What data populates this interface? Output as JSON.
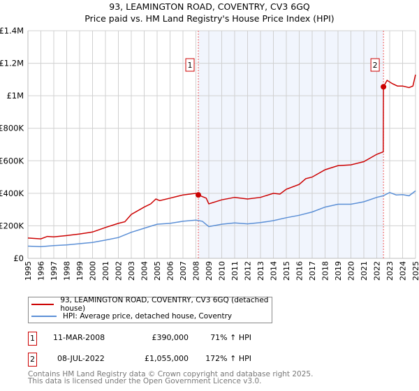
{
  "chart_data": {
    "type": "line",
    "title": "93, LEAMINGTON ROAD, COVENTRY, CV3 6GQ",
    "subtitle": "Price paid vs. HM Land Registry's House Price Index (HPI)",
    "xlim": [
      1995,
      2025
    ],
    "ylim": [
      0,
      1400000
    ],
    "yticks": [
      0,
      200000,
      400000,
      600000,
      800000,
      1000000,
      1200000,
      1400000
    ],
    "ytick_labels": [
      "£0",
      "£200K",
      "£400K",
      "£600K",
      "£800K",
      "£1M",
      "£1.2M",
      "£1.4M"
    ],
    "xticks": [
      1995,
      1996,
      1997,
      1998,
      1999,
      2000,
      2001,
      2002,
      2003,
      2004,
      2005,
      2006,
      2007,
      2008,
      2009,
      2010,
      2011,
      2012,
      2013,
      2014,
      2015,
      2016,
      2017,
      2018,
      2019,
      2020,
      2021,
      2022,
      2023,
      2024,
      2025
    ],
    "grid": true,
    "shaded_range": [
      2008.19,
      2022.52
    ],
    "series": [
      {
        "name": "93, LEAMINGTON ROAD, COVENTRY, CV3 6GQ (detached house)",
        "color": "#cc0000",
        "x": [
          1995,
          1996,
          1996.5,
          1997,
          1998,
          1999,
          2000,
          2001,
          2002,
          2002.5,
          2003,
          2004,
          2004.5,
          2004.9,
          2005.2,
          2006,
          2007,
          2008,
          2008.19,
          2008.8,
          2009,
          2010,
          2011,
          2012,
          2013,
          2014,
          2014.5,
          2015,
          2016,
          2016.5,
          2017,
          2018,
          2019,
          2020,
          2021,
          2022,
          2022.5,
          2022.52,
          2022.8,
          2023.2,
          2023.6,
          2024,
          2024.5,
          2024.8,
          2025
        ],
        "y": [
          125000,
          120000,
          135000,
          132000,
          140000,
          150000,
          162000,
          190000,
          215000,
          225000,
          270000,
          315000,
          335000,
          365000,
          355000,
          370000,
          390000,
          400000,
          390000,
          370000,
          335000,
          360000,
          375000,
          365000,
          375000,
          400000,
          395000,
          425000,
          455000,
          490000,
          500000,
          545000,
          570000,
          575000,
          595000,
          640000,
          655000,
          1055000,
          1095000,
          1075000,
          1060000,
          1060000,
          1050000,
          1060000,
          1130000
        ]
      },
      {
        "name": "HPI: Average price, detached house, Coventry",
        "color": "#5b8fd6",
        "x": [
          1995,
          1996,
          1997,
          1998,
          1999,
          2000,
          2001,
          2002,
          2003,
          2004,
          2005,
          2006,
          2007,
          2008,
          2008.5,
          2009,
          2010,
          2011,
          2012,
          2013,
          2014,
          2015,
          2016,
          2017,
          2018,
          2019,
          2020,
          2021,
          2022,
          2022.5,
          2023,
          2023.5,
          2024,
          2024.5,
          2025
        ],
        "y": [
          75000,
          72000,
          78000,
          83000,
          90000,
          98000,
          112000,
          128000,
          160000,
          185000,
          210000,
          215000,
          228000,
          235000,
          228000,
          195000,
          210000,
          218000,
          212000,
          220000,
          232000,
          250000,
          265000,
          285000,
          315000,
          333000,
          333000,
          348000,
          375000,
          385000,
          405000,
          390000,
          392000,
          385000,
          415000
        ]
      }
    ],
    "annotations": [
      {
        "label": "1",
        "x": 2008.19,
        "y": 390000
      },
      {
        "label": "2",
        "x": 2022.52,
        "y": 1055000
      }
    ]
  },
  "transactions": [
    {
      "num": "1",
      "date": "11-MAR-2008",
      "price": "£390,000",
      "hpi": "71% ↑ HPI"
    },
    {
      "num": "2",
      "date": "08-JUL-2022",
      "price": "£1,055,000",
      "hpi": "172% ↑ HPI"
    }
  ],
  "footer": {
    "line1": "Contains HM Land Registry data © Crown copyright and database right 2025.",
    "line2": "This data is licensed under the Open Government Licence v3.0."
  }
}
